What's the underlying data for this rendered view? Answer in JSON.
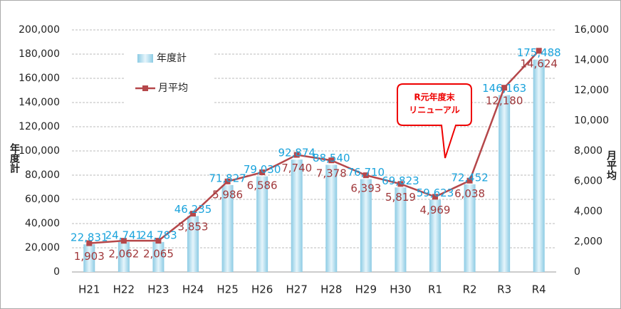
{
  "chart_data": {
    "type": "bar_line",
    "categories": [
      "H21",
      "H22",
      "H23",
      "H24",
      "H25",
      "H26",
      "H27",
      "H28",
      "H29",
      "H30",
      "R1",
      "R2",
      "R3",
      "R4"
    ],
    "series": [
      {
        "name": "年度計",
        "type": "bar",
        "color": "#9fd3e8",
        "values": [
          22831,
          24741,
          24783,
          46235,
          71827,
          79030,
          92874,
          88540,
          76710,
          69823,
          59623,
          72452,
          146163,
          175488
        ],
        "value_labels": [
          "22,831",
          "24,741",
          "24,783",
          "46,235",
          "71,827",
          "79,030",
          "92,874",
          "88,540",
          "76,710",
          "69,823",
          "59,623",
          "72,452",
          "146,163",
          "175,488"
        ]
      },
      {
        "name": "月平均",
        "type": "line",
        "axis": "y2",
        "color": "#b5474a",
        "values": [
          1903,
          2062,
          2065,
          3853,
          5986,
          6586,
          7740,
          7378,
          6393,
          5819,
          4969,
          6038,
          12180,
          14624
        ],
        "value_labels": [
          "1,903",
          "2,062",
          "2,065",
          "3,853",
          "5,986",
          "6,586",
          "7,740",
          "7,378",
          "6,393",
          "5,819",
          "4,969",
          "6,038",
          "12,180",
          "14,624"
        ]
      }
    ],
    "ylabel": "年度計",
    "y2label": "月平均",
    "ylim": [
      0,
      200000
    ],
    "yticks": [
      0,
      {
        "value": 20000,
        "label": "20,000"
      },
      {
        "value": 40000,
        "label": "40,000"
      },
      {
        "value": 60000,
        "label": "60,000"
      },
      {
        "value": 80000,
        "label": "80,000"
      },
      {
        "value": 100000,
        "label": "100,000"
      },
      {
        "value": 120000,
        "label": "120,000"
      },
      {
        "value": 140000,
        "label": "140,000"
      },
      {
        "value": 160000,
        "label": "160,000"
      },
      {
        "value": 180000,
        "label": "180,000"
      },
      {
        "value": 200000,
        "label": "200,000"
      }
    ],
    "y2lim": [
      0,
      16000
    ],
    "y2ticks": [
      0,
      {
        "value": 2000,
        "label": "2,000"
      },
      {
        "value": 4000,
        "label": "4,000"
      },
      {
        "value": 6000,
        "label": "6,000"
      },
      {
        "value": 8000,
        "label": "8,000"
      },
      {
        "value": 10000,
        "label": "10,000"
      },
      {
        "value": 12000,
        "label": "12,000"
      },
      {
        "value": 14000,
        "label": "14,000"
      },
      {
        "value": 16000,
        "label": "16,000"
      }
    ],
    "grid": true,
    "legend": "upper left",
    "annotation": [
      "R元年度末",
      "リニューアル"
    ]
  }
}
